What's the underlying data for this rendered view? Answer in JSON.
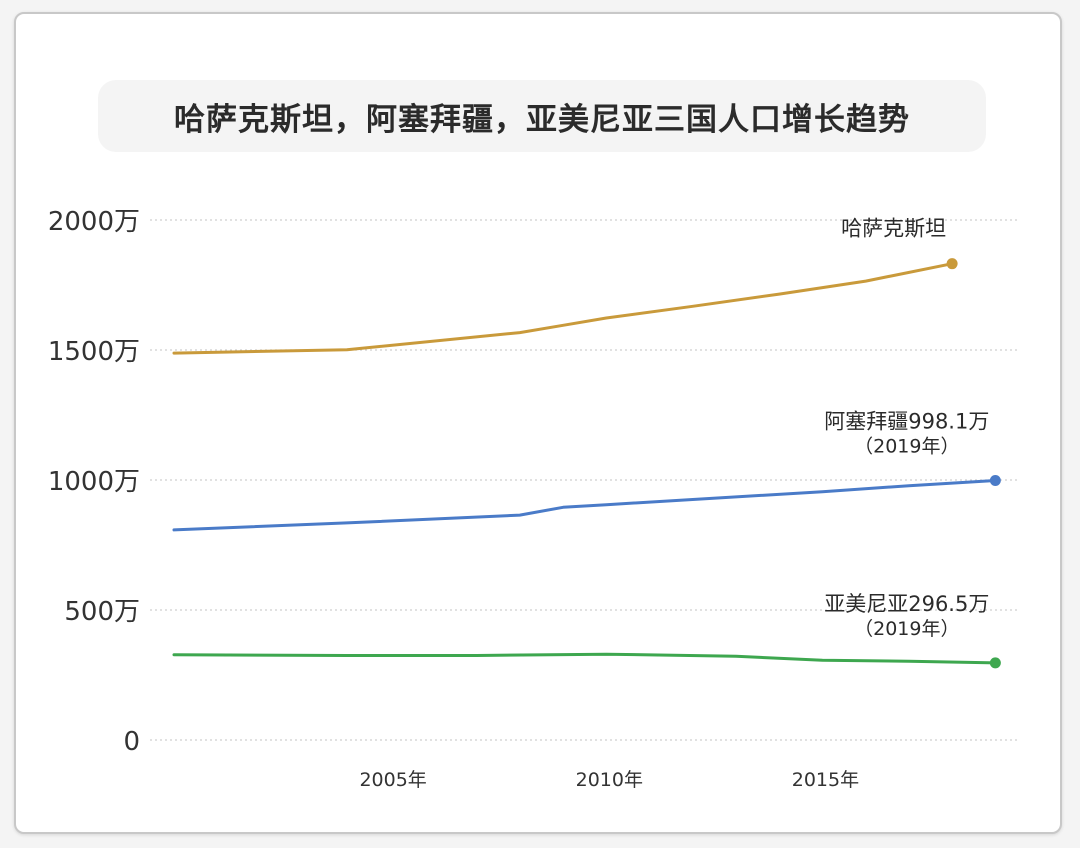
{
  "chart_data": {
    "type": "line",
    "title": "哈萨克斯坦，阿塞拜疆，亚美尼亚三国人口增长趋势",
    "xlabel": "",
    "ylabel": "",
    "xlim": [
      2000,
      2019.2
    ],
    "ylim": [
      0,
      2000
    ],
    "yticks": [
      0,
      500,
      1000,
      1500,
      2000
    ],
    "ytick_labels": [
      "0",
      "500万",
      "1000万",
      "1500万",
      "2000万"
    ],
    "xticks": [
      2005,
      2010,
      2015
    ],
    "xtick_labels": [
      "2005年",
      "2010年",
      "2015年"
    ],
    "grid": true,
    "series": [
      {
        "name": "哈萨克斯坦",
        "color": "#c99a3b",
        "label_lines": [
          "哈萨克斯坦"
        ],
        "points": [
          [
            2000,
            1488
          ],
          [
            2004,
            1501
          ],
          [
            2008,
            1567
          ],
          [
            2009,
            1595
          ],
          [
            2010,
            1623
          ],
          [
            2012,
            1668
          ],
          [
            2014,
            1715
          ],
          [
            2016,
            1765
          ],
          [
            2018,
            1832
          ]
        ]
      },
      {
        "name": "阿塞拜疆",
        "color": "#4a7bc8",
        "label_lines": [
          "阿塞拜疆998.1万",
          "（2019年）"
        ],
        "points": [
          [
            2000,
            808
          ],
          [
            2004,
            835
          ],
          [
            2008,
            865
          ],
          [
            2009,
            895
          ],
          [
            2010,
            905
          ],
          [
            2012,
            925
          ],
          [
            2015,
            955
          ],
          [
            2017,
            978
          ],
          [
            2019,
            998.1
          ]
        ]
      },
      {
        "name": "亚美尼亚",
        "color": "#3ea74f",
        "label_lines": [
          "亚美尼亚296.5万",
          "（2019年）"
        ],
        "points": [
          [
            2000,
            328
          ],
          [
            2004,
            325
          ],
          [
            2007,
            325
          ],
          [
            2010,
            330
          ],
          [
            2013,
            322
          ],
          [
            2015,
            307
          ],
          [
            2017,
            303
          ],
          [
            2019,
            296.5
          ]
        ]
      }
    ]
  }
}
